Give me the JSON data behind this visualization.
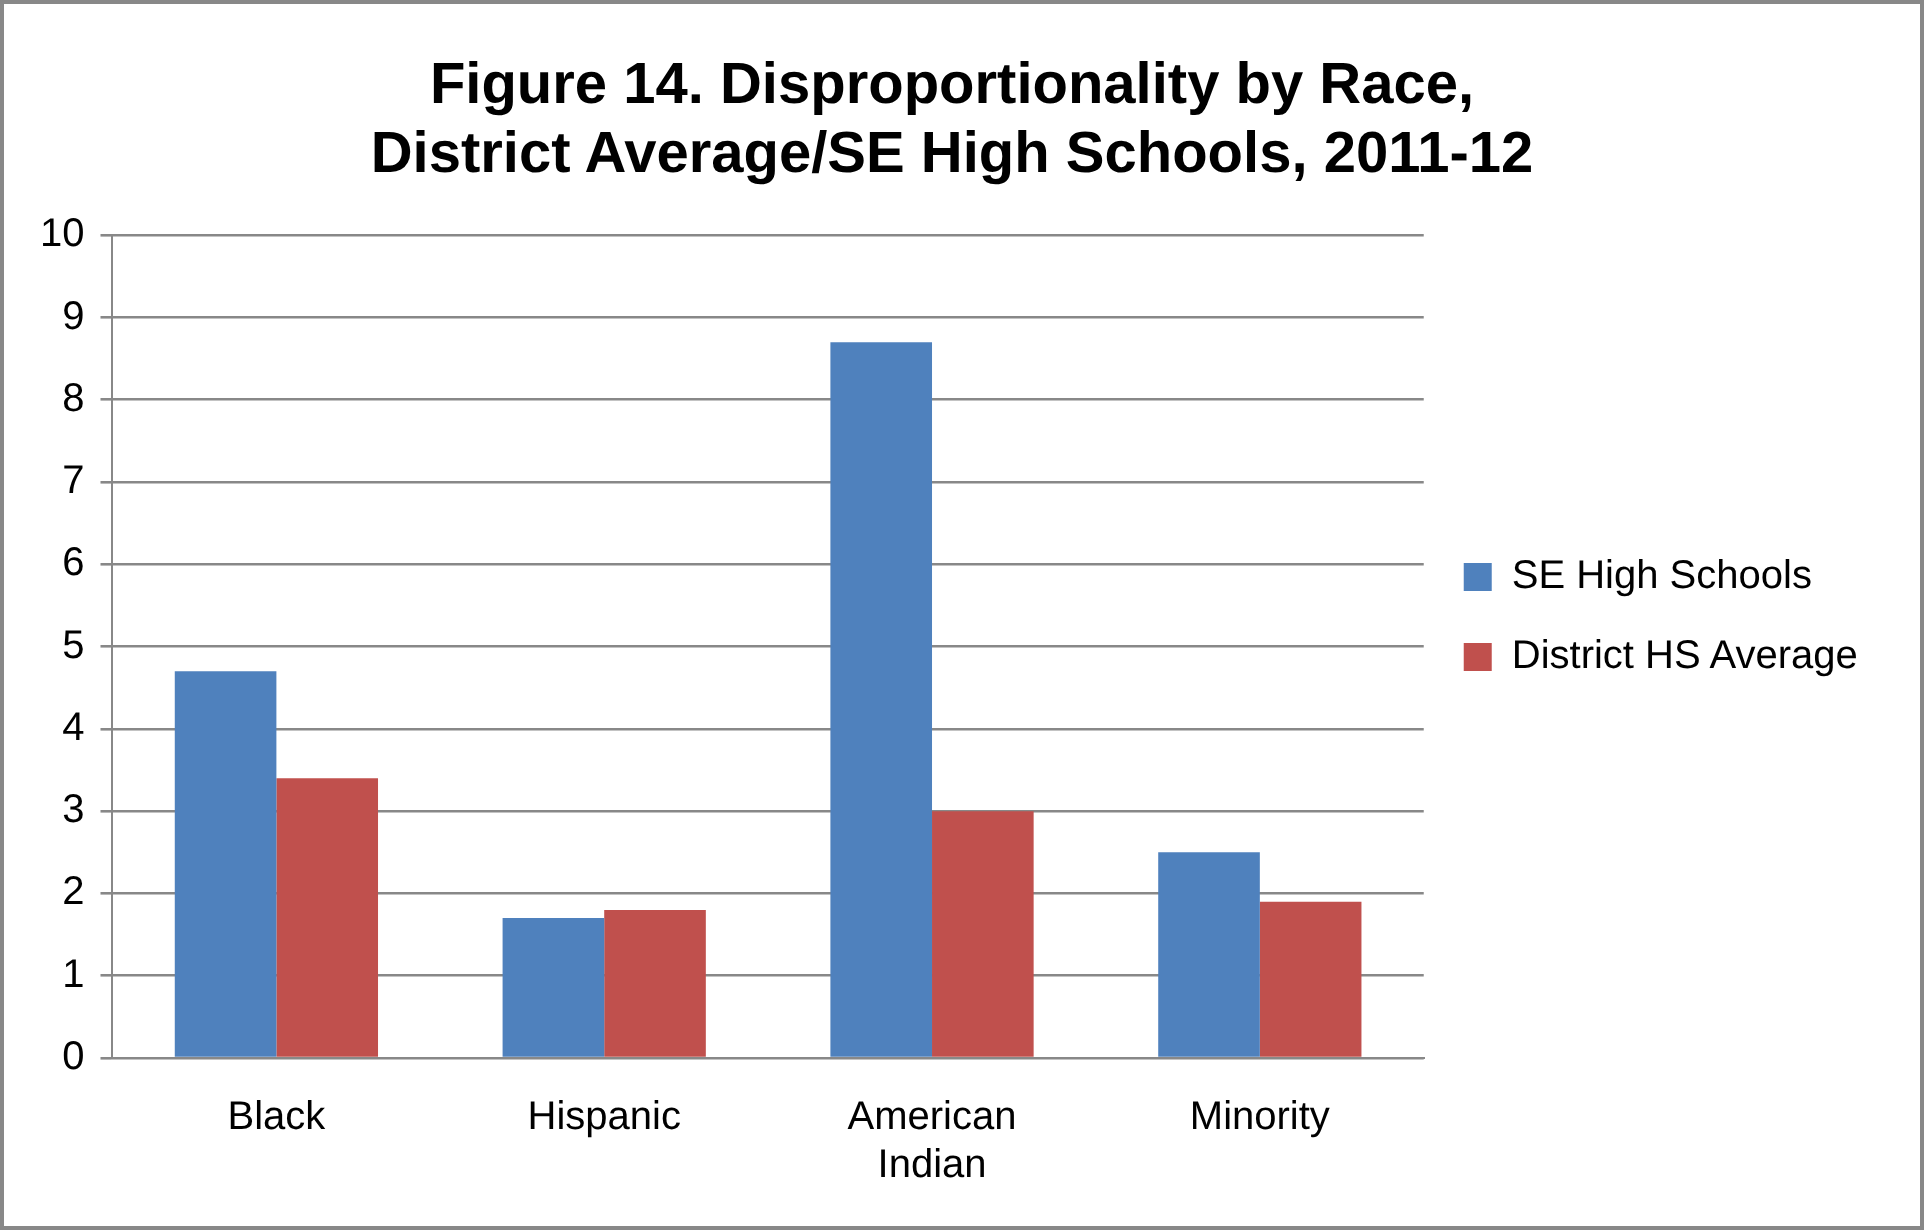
{
  "chart_data": {
    "type": "bar",
    "title": "Figure 14. Disproportionality by Race,\nDistrict Average/SE High Schools, 2011-12",
    "categories": [
      "Black",
      "Hispanic",
      "American Indian",
      "Minority"
    ],
    "series": [
      {
        "name": "SE High Schools",
        "color": "#4f81bd",
        "values": [
          4.7,
          1.7,
          8.7,
          2.5
        ]
      },
      {
        "name": "District HS Average",
        "color": "#c0504d",
        "values": [
          3.4,
          1.8,
          3.0,
          1.9
        ]
      }
    ],
    "ylim": [
      0,
      10
    ],
    "yticks": [
      0,
      1,
      2,
      3,
      4,
      5,
      6,
      7,
      8,
      9,
      10
    ],
    "grid": "y",
    "legend": "right"
  }
}
